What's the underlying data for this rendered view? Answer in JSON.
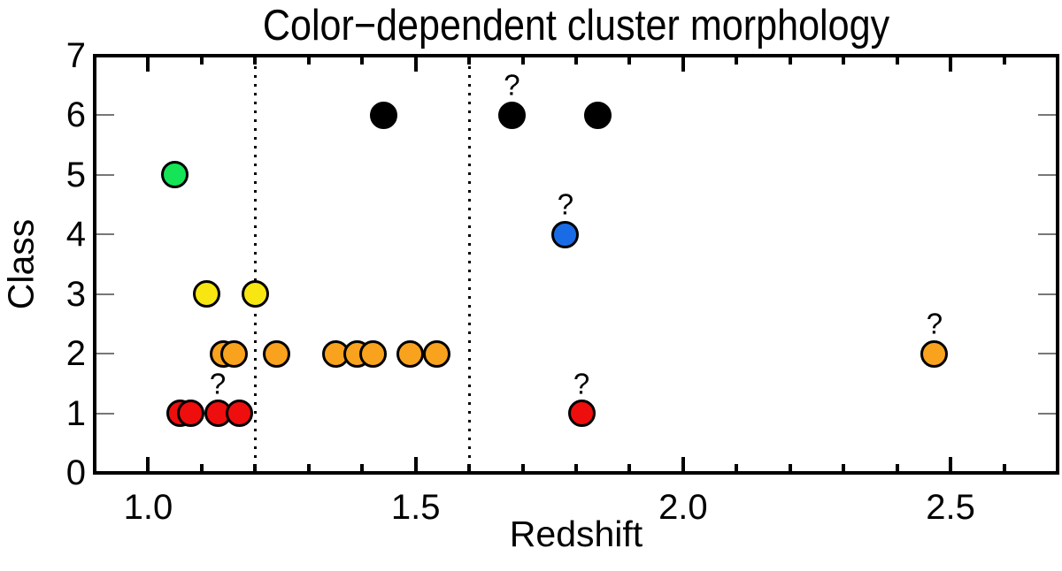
{
  "chart_data": {
    "type": "scatter",
    "title": "Color−dependent cluster morphology",
    "xlabel": "Redshift",
    "ylabel": "Class",
    "xlim": [
      0.9,
      2.7
    ],
    "ylim": [
      0,
      7
    ],
    "x_major_ticks": [
      1.0,
      1.5,
      2.0,
      2.5
    ],
    "x_major_tick_labels": [
      "1.0",
      "1.5",
      "2.0",
      "2.5"
    ],
    "x_minor_step": 0.1,
    "y_ticks": [
      0,
      1,
      2,
      3,
      4,
      5,
      6,
      7
    ],
    "y_tick_labels": [
      "0",
      "1",
      "2",
      "3",
      "4",
      "5",
      "6",
      "7"
    ],
    "grid": false,
    "legend": "none",
    "vlines_dotted": [
      1.2,
      1.6
    ],
    "flag_symbol": "?",
    "colors": {
      "black": "#000000",
      "green": "#14E455",
      "yellow": "#F7E612",
      "orange": "#F9A21D",
      "red": "#EE0E0E",
      "blue": "#1A6CE6"
    },
    "points": [
      {
        "x": 1.05,
        "y": 5,
        "color": "green",
        "flagged": false
      },
      {
        "x": 1.44,
        "y": 6,
        "color": "black",
        "flagged": false
      },
      {
        "x": 1.68,
        "y": 6,
        "color": "black",
        "flagged": true
      },
      {
        "x": 1.84,
        "y": 6,
        "color": "black",
        "flagged": false
      },
      {
        "x": 1.78,
        "y": 4,
        "color": "blue",
        "flagged": true
      },
      {
        "x": 1.11,
        "y": 3,
        "color": "yellow",
        "flagged": false
      },
      {
        "x": 1.2,
        "y": 3,
        "color": "yellow",
        "flagged": false
      },
      {
        "x": 1.14,
        "y": 2,
        "color": "orange",
        "flagged": false
      },
      {
        "x": 1.16,
        "y": 2,
        "color": "orange",
        "flagged": false
      },
      {
        "x": 1.24,
        "y": 2,
        "color": "orange",
        "flagged": false
      },
      {
        "x": 1.35,
        "y": 2,
        "color": "orange",
        "flagged": false
      },
      {
        "x": 1.39,
        "y": 2,
        "color": "orange",
        "flagged": false
      },
      {
        "x": 1.42,
        "y": 2,
        "color": "orange",
        "flagged": false
      },
      {
        "x": 1.49,
        "y": 2,
        "color": "orange",
        "flagged": false
      },
      {
        "x": 1.54,
        "y": 2,
        "color": "orange",
        "flagged": false
      },
      {
        "x": 2.47,
        "y": 2,
        "color": "orange",
        "flagged": true
      },
      {
        "x": 1.06,
        "y": 1,
        "color": "red",
        "flagged": false
      },
      {
        "x": 1.08,
        "y": 1,
        "color": "red",
        "flagged": false
      },
      {
        "x": 1.13,
        "y": 1,
        "color": "red",
        "flagged": true
      },
      {
        "x": 1.17,
        "y": 1,
        "color": "red",
        "flagged": false
      },
      {
        "x": 1.81,
        "y": 1,
        "color": "red",
        "flagged": true
      }
    ]
  }
}
